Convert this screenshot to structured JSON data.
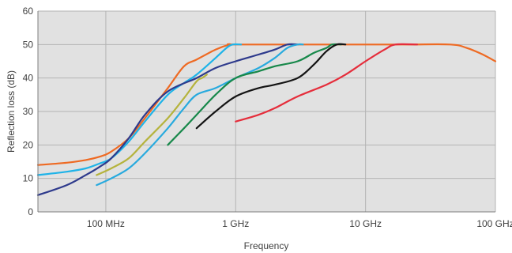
{
  "chart_data": {
    "type": "line",
    "title": "",
    "xlabel": "Frequency",
    "ylabel": "Reflection loss (dB)",
    "x_scale": "log",
    "x_unit": "MHz",
    "xlim": [
      30,
      100000
    ],
    "ylim": [
      0,
      60
    ],
    "x_ticks": [
      {
        "value": 100,
        "label": "100 MHz"
      },
      {
        "value": 1000,
        "label": "1 GHz"
      },
      {
        "value": 10000,
        "label": "10 GHz"
      },
      {
        "value": 100000,
        "label": "100 GHz"
      }
    ],
    "y_ticks": [
      0,
      10,
      20,
      30,
      40,
      50,
      60
    ],
    "grid": true,
    "legend": "none",
    "colors": {
      "plot_background": "#e1e1e1",
      "grid": "#b4b4b4",
      "axis": "#808080"
    },
    "series": [
      {
        "color": "#ee6a23",
        "points": [
          [
            30,
            14
          ],
          [
            50,
            14.7
          ],
          [
            70,
            15.5
          ],
          [
            90,
            16.5
          ],
          [
            110,
            18
          ],
          [
            150,
            22
          ],
          [
            200,
            28
          ],
          [
            300,
            37
          ],
          [
            400,
            43.5
          ],
          [
            500,
            45.5
          ],
          [
            700,
            48.5
          ],
          [
            900,
            50
          ],
          [
            1000,
            50
          ],
          [
            5000,
            50
          ],
          [
            20000,
            50
          ],
          [
            45000,
            50
          ],
          [
            60000,
            49
          ],
          [
            80000,
            47
          ],
          [
            100000,
            45
          ]
        ]
      },
      {
        "color": "#1eb3e8",
        "points": [
          [
            30,
            11
          ],
          [
            50,
            12
          ],
          [
            70,
            13
          ],
          [
            90,
            14.5
          ],
          [
            110,
            16
          ],
          [
            150,
            21
          ],
          [
            200,
            27
          ],
          [
            300,
            35
          ],
          [
            400,
            38.5
          ],
          [
            500,
            41
          ],
          [
            700,
            46
          ],
          [
            850,
            49
          ],
          [
            950,
            50
          ],
          [
            1100,
            50
          ]
        ]
      },
      {
        "color": "#2e3a8c",
        "points": [
          [
            30,
            5
          ],
          [
            50,
            8
          ],
          [
            70,
            11
          ],
          [
            90,
            13.5
          ],
          [
            110,
            16
          ],
          [
            150,
            22
          ],
          [
            200,
            29
          ],
          [
            300,
            36
          ],
          [
            500,
            40
          ],
          [
            700,
            43
          ],
          [
            1000,
            45
          ],
          [
            1500,
            47
          ],
          [
            2000,
            48.5
          ],
          [
            2500,
            50
          ],
          [
            3000,
            50
          ]
        ]
      },
      {
        "color": "#b5b33c",
        "points": [
          [
            85,
            11
          ],
          [
            110,
            13
          ],
          [
            150,
            16
          ],
          [
            200,
            21
          ],
          [
            300,
            28
          ],
          [
            400,
            34
          ],
          [
            500,
            39
          ],
          [
            550,
            40
          ],
          [
            600,
            41
          ]
        ]
      },
      {
        "color": "#28aade",
        "points": [
          [
            85,
            8
          ],
          [
            110,
            10
          ],
          [
            150,
            13
          ],
          [
            200,
            17.5
          ],
          [
            300,
            25
          ],
          [
            400,
            31
          ],
          [
            500,
            35
          ],
          [
            700,
            37
          ],
          [
            1000,
            40
          ],
          [
            1500,
            43
          ],
          [
            2000,
            46
          ],
          [
            2500,
            49
          ],
          [
            3000,
            50
          ],
          [
            3300,
            50
          ]
        ]
      },
      {
        "color": "#17884a",
        "points": [
          [
            300,
            20
          ],
          [
            400,
            25
          ],
          [
            500,
            29
          ],
          [
            700,
            35
          ],
          [
            1000,
            40
          ],
          [
            1500,
            42
          ],
          [
            2000,
            43.5
          ],
          [
            3000,
            45
          ],
          [
            4000,
            47.5
          ],
          [
            5000,
            49
          ],
          [
            5500,
            50
          ],
          [
            6500,
            50
          ]
        ]
      },
      {
        "color": "#141414",
        "points": [
          [
            500,
            25
          ],
          [
            700,
            30
          ],
          [
            1000,
            34.5
          ],
          [
            1500,
            37
          ],
          [
            2000,
            38
          ],
          [
            3000,
            40
          ],
          [
            4000,
            44
          ],
          [
            5000,
            48
          ],
          [
            6000,
            50
          ],
          [
            7000,
            50
          ]
        ]
      },
      {
        "color": "#e52d3b",
        "points": [
          [
            1000,
            27
          ],
          [
            1500,
            29
          ],
          [
            2000,
            31
          ],
          [
            3000,
            34.5
          ],
          [
            5000,
            38
          ],
          [
            7000,
            41
          ],
          [
            10000,
            45
          ],
          [
            14000,
            48.5
          ],
          [
            17000,
            50
          ],
          [
            25000,
            50
          ]
        ]
      }
    ]
  }
}
